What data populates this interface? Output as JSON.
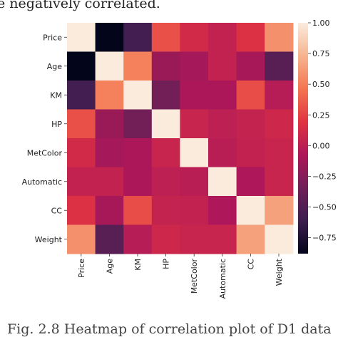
{
  "caption_top": "e negatively correlated.",
  "caption_bottom": "Fig. 2.8 Heatmap of correlation plot of D1 data",
  "chart_data": {
    "type": "heatmap",
    "x_labels": [
      "Price",
      "Age",
      "KM",
      "HP",
      "MetColor",
      "Automatic",
      "CC",
      "Weight"
    ],
    "y_labels": [
      "Price",
      "Age",
      "KM",
      "HP",
      "MetColor",
      "Automatic",
      "CC",
      "Weight"
    ],
    "values": [
      [
        1.0,
        -0.88,
        -0.57,
        0.31,
        0.11,
        0.03,
        0.17,
        0.58
      ],
      [
        -0.88,
        1.0,
        0.51,
        -0.16,
        -0.11,
        0.03,
        -0.1,
        -0.47
      ],
      [
        -0.57,
        0.51,
        1.0,
        -0.33,
        -0.08,
        -0.08,
        0.3,
        -0.03
      ],
      [
        0.31,
        -0.16,
        -0.33,
        1.0,
        0.06,
        0.01,
        0.04,
        0.09
      ],
      [
        0.11,
        -0.11,
        -0.08,
        0.06,
        1.0,
        -0.02,
        0.03,
        0.06
      ],
      [
        0.03,
        0.03,
        -0.08,
        0.01,
        -0.02,
        1.0,
        -0.07,
        0.06
      ],
      [
        0.17,
        -0.1,
        0.3,
        0.04,
        0.03,
        -0.07,
        1.0,
        0.65
      ],
      [
        0.58,
        -0.47,
        -0.03,
        0.09,
        0.06,
        0.06,
        0.65,
        1.0
      ]
    ],
    "colorbar_ticks": [
      "1.00",
      "0.75",
      "0.50",
      "0.25",
      "0.00",
      "−0.25",
      "−0.50",
      "−0.75"
    ],
    "colorbar_tick_values": [
      1.0,
      0.75,
      0.5,
      0.25,
      0.0,
      -0.25,
      -0.5,
      -0.75
    ],
    "vmin": -0.88,
    "vmax": 1.0,
    "colormap": "rocket",
    "colormap_stops": [
      "#03051a",
      "#3b1e4f",
      "#701f57",
      "#ad1759",
      "#e13342",
      "#f37651",
      "#f6b48f",
      "#faebdd"
    ]
  }
}
